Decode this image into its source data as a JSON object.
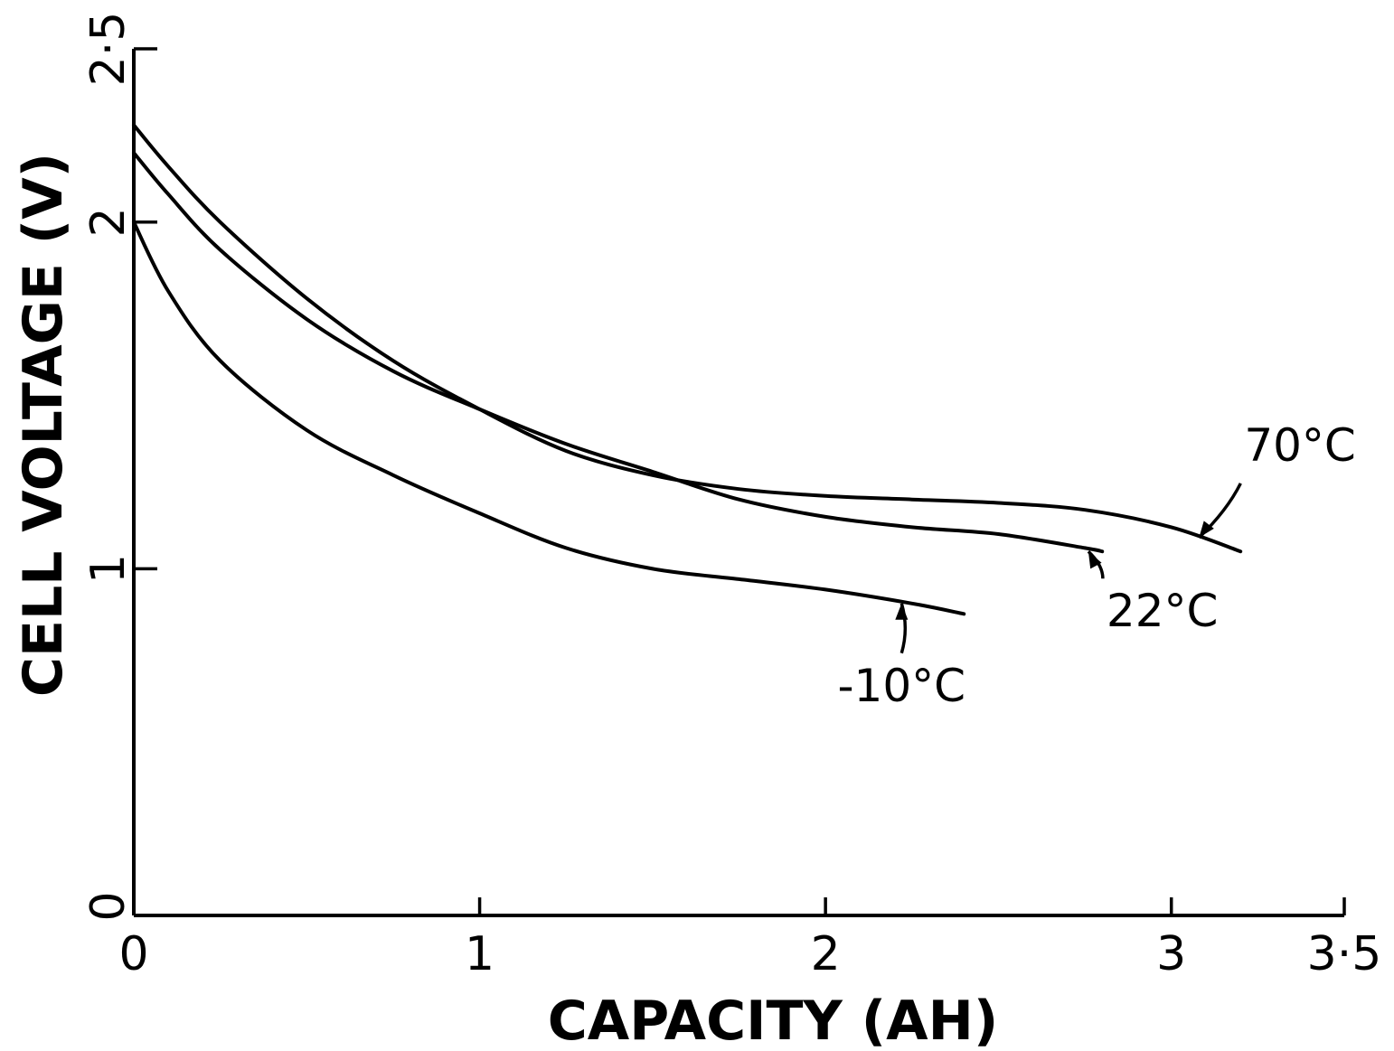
{
  "chart_data": {
    "type": "line",
    "xlabel": "CAPACITY (AH)",
    "ylabel": "CELL VOLTAGE (V)",
    "xlim": [
      0,
      3.5
    ],
    "ylim": [
      0,
      2.5
    ],
    "x_ticks": [
      {
        "value": 0,
        "label": "0"
      },
      {
        "value": 1,
        "label": "1"
      },
      {
        "value": 2,
        "label": "2"
      },
      {
        "value": 3,
        "label": "3"
      },
      {
        "value": 3.5,
        "label": "3·5"
      }
    ],
    "y_ticks": [
      {
        "value": 0,
        "label": "0"
      },
      {
        "value": 1,
        "label": "1"
      },
      {
        "value": 2,
        "label": "2"
      },
      {
        "value": 2.5,
        "label": "2·5"
      }
    ],
    "grid": false,
    "series": [
      {
        "name": "70°C",
        "x": [
          0,
          0.1,
          0.25,
          0.5,
          0.75,
          1.0,
          1.25,
          1.5,
          1.75,
          2.0,
          2.25,
          2.5,
          2.75,
          3.0,
          3.2
        ],
        "y": [
          2.28,
          2.16,
          2.0,
          1.78,
          1.6,
          1.46,
          1.34,
          1.27,
          1.23,
          1.21,
          1.2,
          1.19,
          1.17,
          1.12,
          1.05
        ]
      },
      {
        "name": "22°C",
        "x": [
          0,
          0.1,
          0.25,
          0.5,
          0.75,
          1.0,
          1.25,
          1.5,
          1.75,
          2.0,
          2.25,
          2.5,
          2.75,
          2.8
        ],
        "y": [
          2.2,
          2.08,
          1.92,
          1.72,
          1.57,
          1.46,
          1.36,
          1.28,
          1.2,
          1.15,
          1.12,
          1.1,
          1.06,
          1.05
        ]
      },
      {
        "name": "-10°C",
        "x": [
          0,
          0.1,
          0.25,
          0.5,
          0.75,
          1.0,
          1.25,
          1.5,
          1.75,
          2.0,
          2.25,
          2.4
        ],
        "y": [
          2.0,
          1.8,
          1.6,
          1.4,
          1.27,
          1.16,
          1.06,
          1.0,
          0.97,
          0.94,
          0.9,
          0.87
        ]
      }
    ],
    "annotations": [
      {
        "series": "70°C",
        "label": "70°C",
        "at_x": 3.08,
        "at_y": 1.09
      },
      {
        "series": "22°C",
        "label": "22°C",
        "at_x": 2.76,
        "at_y": 1.05
      },
      {
        "series": "-10°C",
        "label": "-10°C",
        "at_x": 2.22,
        "at_y": 0.9
      }
    ]
  }
}
